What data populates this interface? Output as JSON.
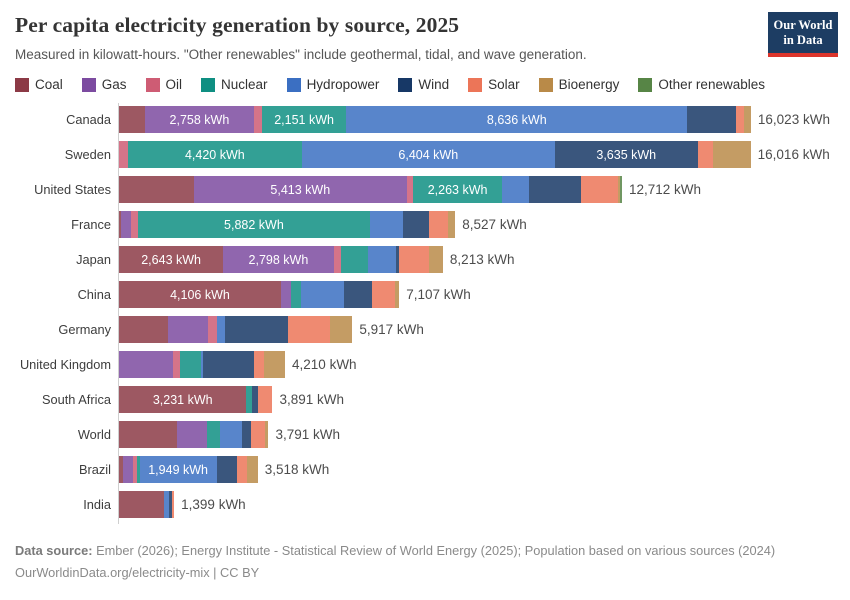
{
  "header": {
    "title": "Per capita electricity generation by source, 2025",
    "subtitle": "Measured in kilowatt-hours. \"Other renewables\" include geothermal, tidal, and wave generation."
  },
  "logo": {
    "line1": "Our World",
    "line2": "in Data",
    "bg": "#1d3d63",
    "accent": "#dc352c"
  },
  "legend": [
    {
      "key": "coal",
      "label": "Coal"
    },
    {
      "key": "gas",
      "label": "Gas"
    },
    {
      "key": "oil",
      "label": "Oil"
    },
    {
      "key": "nuclear",
      "label": "Nuclear"
    },
    {
      "key": "hydropower",
      "label": "Hydropower"
    },
    {
      "key": "wind",
      "label": "Wind"
    },
    {
      "key": "solar",
      "label": "Solar"
    },
    {
      "key": "bioenergy",
      "label": "Bioenergy"
    },
    {
      "key": "other_renewables",
      "label": "Other renewables"
    }
  ],
  "series_colors": {
    "coal": {
      "legend": "#8C3A46",
      "bar": "#9D5862"
    },
    "gas": {
      "legend": "#7C4BA0",
      "bar": "#9066AE"
    },
    "oil": {
      "legend": "#CE5C74",
      "bar": "#D57489"
    },
    "nuclear": {
      "legend": "#0F8F82",
      "bar": "#33A095"
    },
    "hydropower": {
      "legend": "#3B6FC2",
      "bar": "#5885CB"
    },
    "wind": {
      "legend": "#173866",
      "bar": "#3A567D"
    },
    "solar": {
      "legend": "#EC7558",
      "bar": "#EF8A71"
    },
    "bioenergy": {
      "legend": "#B98A48",
      "bar": "#C49C64"
    },
    "other_renewables": {
      "legend": "#578546",
      "bar": "#709762"
    }
  },
  "chart_data": {
    "type": "bar",
    "orientation": "horizontal",
    "stacked": true,
    "unit": "kWh",
    "xmax": 16023,
    "grid": false,
    "categories": [
      "Canada",
      "Sweden",
      "United States",
      "France",
      "Japan",
      "China",
      "Germany",
      "United Kingdom",
      "South Africa",
      "World",
      "Brazil",
      "India"
    ],
    "rows": [
      {
        "country": "Canada",
        "total": 16023,
        "total_label": "16,023 kWh",
        "segments": [
          {
            "series": "coal",
            "value": 660
          },
          {
            "series": "gas",
            "value": 2758,
            "label": "2,758 kWh"
          },
          {
            "series": "oil",
            "value": 200
          },
          {
            "series": "nuclear",
            "value": 2151,
            "label": "2,151 kWh"
          },
          {
            "series": "hydropower",
            "value": 8636,
            "label": "8,636 kWh"
          },
          {
            "series": "wind",
            "value": 1240
          },
          {
            "series": "solar",
            "value": 190
          },
          {
            "series": "bioenergy",
            "value": 188
          }
        ]
      },
      {
        "country": "Sweden",
        "total": 16016,
        "total_label": "16,016 kWh",
        "segments": [
          {
            "series": "oil",
            "value": 220
          },
          {
            "series": "nuclear",
            "value": 4420,
            "label": "4,420 kWh"
          },
          {
            "series": "hydropower",
            "value": 6404,
            "label": "6,404 kWh"
          },
          {
            "series": "wind",
            "value": 3635,
            "label": "3,635 kWh"
          },
          {
            "series": "solar",
            "value": 370
          },
          {
            "series": "bioenergy",
            "value": 967
          }
        ]
      },
      {
        "country": "United States",
        "total": 12712,
        "total_label": "12,712 kWh",
        "segments": [
          {
            "series": "coal",
            "value": 1890
          },
          {
            "series": "gas",
            "value": 5413,
            "label": "5,413 kWh"
          },
          {
            "series": "oil",
            "value": 150
          },
          {
            "series": "nuclear",
            "value": 2263,
            "label": "2,263 kWh"
          },
          {
            "series": "hydropower",
            "value": 680
          },
          {
            "series": "wind",
            "value": 1320
          },
          {
            "series": "solar",
            "value": 936
          },
          {
            "series": "bioenergy",
            "value": 30
          },
          {
            "series": "other_renewables",
            "value": 30
          }
        ]
      },
      {
        "country": "France",
        "total": 8527,
        "total_label": "8,527 kWh",
        "segments": [
          {
            "series": "coal",
            "value": 60
          },
          {
            "series": "gas",
            "value": 240
          },
          {
            "series": "oil",
            "value": 180
          },
          {
            "series": "nuclear",
            "value": 5882,
            "label": "5,882 kWh"
          },
          {
            "series": "hydropower",
            "value": 850
          },
          {
            "series": "wind",
            "value": 650
          },
          {
            "series": "solar",
            "value": 470
          },
          {
            "series": "bioenergy",
            "value": 195
          }
        ]
      },
      {
        "country": "Japan",
        "total": 8213,
        "total_label": "8,213 kWh",
        "segments": [
          {
            "series": "coal",
            "value": 2643,
            "label": "2,643 kWh"
          },
          {
            "series": "gas",
            "value": 2798,
            "label": "2,798 kWh"
          },
          {
            "series": "oil",
            "value": 190
          },
          {
            "series": "nuclear",
            "value": 680
          },
          {
            "series": "hydropower",
            "value": 700
          },
          {
            "series": "wind",
            "value": 95
          },
          {
            "series": "solar",
            "value": 750
          },
          {
            "series": "bioenergy",
            "value": 357
          }
        ]
      },
      {
        "country": "China",
        "total": 7107,
        "total_label": "7,107 kWh",
        "segments": [
          {
            "series": "coal",
            "value": 4106,
            "label": "4,106 kWh"
          },
          {
            "series": "gas",
            "value": 250
          },
          {
            "series": "nuclear",
            "value": 250
          },
          {
            "series": "hydropower",
            "value": 1090
          },
          {
            "series": "wind",
            "value": 710
          },
          {
            "series": "solar",
            "value": 600
          },
          {
            "series": "bioenergy",
            "value": 101
          }
        ]
      },
      {
        "country": "Germany",
        "total": 5917,
        "total_label": "5,917 kWh",
        "segments": [
          {
            "series": "coal",
            "value": 1245
          },
          {
            "series": "gas",
            "value": 1015
          },
          {
            "series": "oil",
            "value": 225
          },
          {
            "series": "hydropower",
            "value": 205
          },
          {
            "series": "wind",
            "value": 1600
          },
          {
            "series": "solar",
            "value": 1065
          },
          {
            "series": "bioenergy",
            "value": 562
          }
        ]
      },
      {
        "country": "United Kingdom",
        "total": 4210,
        "total_label": "4,210 kWh",
        "segments": [
          {
            "series": "gas",
            "value": 1370
          },
          {
            "series": "oil",
            "value": 175
          },
          {
            "series": "nuclear",
            "value": 535
          },
          {
            "series": "hydropower",
            "value": 50
          },
          {
            "series": "wind",
            "value": 1290
          },
          {
            "series": "solar",
            "value": 255
          },
          {
            "series": "bioenergy",
            "value": 535
          }
        ]
      },
      {
        "country": "South Africa",
        "total": 3891,
        "total_label": "3,891 kWh",
        "segments": [
          {
            "series": "coal",
            "value": 3231,
            "label": "3,231 kWh"
          },
          {
            "series": "nuclear",
            "value": 150
          },
          {
            "series": "wind",
            "value": 155
          },
          {
            "series": "solar",
            "value": 355
          }
        ]
      },
      {
        "country": "World",
        "total": 3791,
        "total_label": "3,791 kWh",
        "segments": [
          {
            "series": "coal",
            "value": 1460
          },
          {
            "series": "gas",
            "value": 780
          },
          {
            "series": "nuclear",
            "value": 330
          },
          {
            "series": "hydropower",
            "value": 555
          },
          {
            "series": "wind",
            "value": 230
          },
          {
            "series": "solar",
            "value": 360
          },
          {
            "series": "bioenergy",
            "value": 76
          }
        ]
      },
      {
        "country": "Brazil",
        "total": 3518,
        "total_label": "3,518 kWh",
        "segments": [
          {
            "series": "coal",
            "value": 100
          },
          {
            "series": "gas",
            "value": 250
          },
          {
            "series": "oil",
            "value": 100
          },
          {
            "series": "nuclear",
            "value": 75
          },
          {
            "series": "hydropower",
            "value": 1949,
            "label": "1,949 kWh"
          },
          {
            "series": "wind",
            "value": 510
          },
          {
            "series": "solar",
            "value": 255
          },
          {
            "series": "bioenergy",
            "value": 279
          }
        ]
      },
      {
        "country": "India",
        "total": 1399,
        "total_label": "1,399 kWh",
        "segments": [
          {
            "series": "coal",
            "value": 1145
          },
          {
            "series": "hydropower",
            "value": 125
          },
          {
            "series": "wind",
            "value": 75
          },
          {
            "series": "solar",
            "value": 54
          }
        ]
      }
    ]
  },
  "footer": {
    "source_label": "Data source:",
    "source_text": " Ember (2026); Energy Institute - Statistical Review of World Energy (2025); Population based on various sources (2024)",
    "license": "OurWorldinData.org/electricity-mix | CC BY"
  }
}
